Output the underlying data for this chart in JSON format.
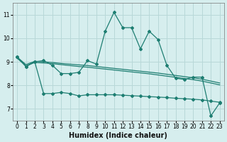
{
  "xlabel": "Humidex (Indice chaleur)",
  "xlim": [
    -0.5,
    23.5
  ],
  "ylim": [
    6.5,
    11.5
  ],
  "yticks": [
    7,
    8,
    9,
    10,
    11
  ],
  "xticks": [
    0,
    1,
    2,
    3,
    4,
    5,
    6,
    7,
    8,
    9,
    10,
    11,
    12,
    13,
    14,
    15,
    16,
    17,
    18,
    19,
    20,
    21,
    22,
    23
  ],
  "bg_color": "#d6eeee",
  "grid_color": "#b8d8d8",
  "line_color": "#1e7e72",
  "line1_x": [
    0,
    1,
    2,
    3,
    4,
    5,
    6,
    7,
    8,
    9,
    10,
    11,
    12,
    13,
    14,
    15,
    16,
    17,
    18,
    19,
    20,
    21,
    22,
    23
  ],
  "line1_y": [
    9.2,
    8.8,
    9.0,
    9.05,
    8.85,
    8.5,
    8.5,
    8.55,
    9.05,
    8.9,
    10.3,
    11.1,
    10.45,
    10.45,
    9.55,
    10.3,
    9.95,
    8.85,
    8.3,
    8.25,
    8.35,
    8.35,
    6.7,
    7.25
  ],
  "line2_x": [
    0,
    1,
    2,
    3,
    4,
    5,
    6,
    7,
    8,
    9,
    10,
    11,
    12,
    13,
    14,
    15,
    16,
    17,
    18,
    19,
    20,
    21,
    22,
    23
  ],
  "line2_y": [
    9.2,
    8.88,
    9.02,
    9.0,
    8.97,
    8.93,
    8.9,
    8.87,
    8.84,
    8.8,
    8.76,
    8.72,
    8.68,
    8.64,
    8.6,
    8.56,
    8.52,
    8.47,
    8.42,
    8.37,
    8.32,
    8.26,
    8.18,
    8.1
  ],
  "line3_x": [
    0,
    1,
    2,
    3,
    4,
    5,
    6,
    7,
    8,
    9,
    10,
    11,
    12,
    13,
    14,
    15,
    16,
    17,
    18,
    19,
    20,
    21,
    22,
    23
  ],
  "line3_y": [
    9.15,
    8.83,
    8.97,
    8.95,
    8.92,
    8.88,
    8.84,
    8.8,
    8.77,
    8.73,
    8.69,
    8.65,
    8.61,
    8.57,
    8.53,
    8.49,
    8.44,
    8.39,
    8.34,
    8.29,
    8.24,
    8.18,
    8.1,
    8.02
  ],
  "line4_x": [
    0,
    1,
    2,
    3,
    4,
    5,
    6,
    7,
    8,
    9,
    10,
    11,
    12,
    13,
    14,
    15,
    16,
    17,
    18,
    19,
    20,
    21,
    22,
    23
  ],
  "line4_y": [
    9.2,
    8.8,
    9.0,
    7.65,
    7.65,
    7.7,
    7.65,
    7.55,
    7.6,
    7.6,
    7.6,
    7.6,
    7.58,
    7.56,
    7.54,
    7.52,
    7.5,
    7.48,
    7.45,
    7.43,
    7.41,
    7.38,
    7.33,
    7.28
  ]
}
